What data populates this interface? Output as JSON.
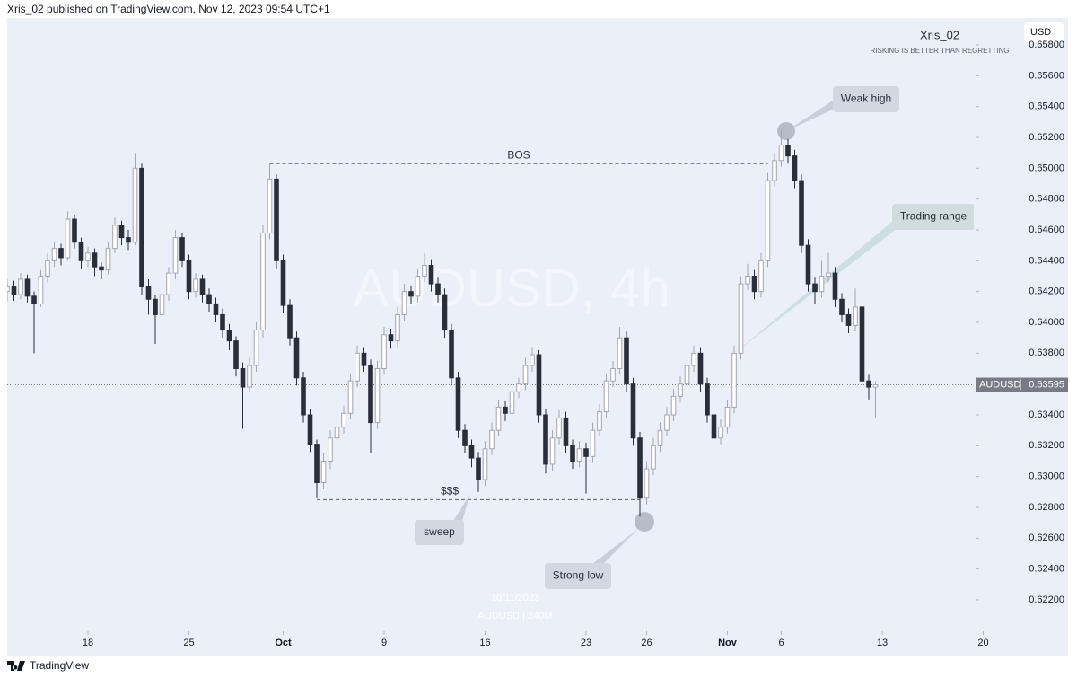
{
  "chart_data": {
    "type": "candlestick",
    "header": "Xris_02 published on TradingView.com, Nov 12, 2023 09:54 UTC+1",
    "currency": "USD",
    "author": "Xris_02",
    "tagline": "RISKING IS BETTER THAN REGRETTING",
    "watermark": "AUDUSD, 4h",
    "footer_date": "10/11/2023",
    "footer_symbol": "AUDUSD | 240M",
    "brand": "TradingView",
    "up_color": "#a3a6ae",
    "down_color": "#2a2e39",
    "ylim": [
      0.61996,
      0.65975
    ],
    "yticks": [
      {
        "value": 0.658,
        "label": "0.65800"
      },
      {
        "value": 0.656,
        "label": "0.65600"
      },
      {
        "value": 0.654,
        "label": "0.65400"
      },
      {
        "value": 0.652,
        "label": "0.65200"
      },
      {
        "value": 0.65,
        "label": "0.65000"
      },
      {
        "value": 0.648,
        "label": "0.64800"
      },
      {
        "value": 0.646,
        "label": "0.64600"
      },
      {
        "value": 0.644,
        "label": "0.64400"
      },
      {
        "value": 0.642,
        "label": "0.64200"
      },
      {
        "value": 0.64,
        "label": "0.64000"
      },
      {
        "value": 0.638,
        "label": "0.63800"
      },
      {
        "value": 0.636,
        "label": "0.63600"
      },
      {
        "value": 0.634,
        "label": "0.63400"
      },
      {
        "value": 0.632,
        "label": "0.63200"
      },
      {
        "value": 0.63,
        "label": "0.63000"
      },
      {
        "value": 0.628,
        "label": "0.62800"
      },
      {
        "value": 0.626,
        "label": "0.62600"
      },
      {
        "value": 0.624,
        "label": "0.62400"
      },
      {
        "value": 0.622,
        "label": "0.62200"
      }
    ],
    "xlim": [
      0,
      148
    ],
    "xticks": [
      {
        "value": 12,
        "label": "18"
      },
      {
        "value": 27,
        "label": "25"
      },
      {
        "value": 41,
        "label": "Oct"
      },
      {
        "value": 56,
        "label": "9"
      },
      {
        "value": 71,
        "label": "16"
      },
      {
        "value": 86,
        "label": "23"
      },
      {
        "value": 95,
        "label": "26"
      },
      {
        "value": 107,
        "label": "Nov"
      },
      {
        "value": 115,
        "label": "6"
      },
      {
        "value": 130,
        "label": "13"
      },
      {
        "value": 145,
        "label": "20"
      }
    ],
    "candles": [
      [
        0.642,
        0.6428,
        0.6414,
        0.6423
      ],
      [
        0.6423,
        0.6427,
        0.6414,
        0.6418
      ],
      [
        0.6418,
        0.6432,
        0.6415,
        0.6428
      ],
      [
        0.6428,
        0.6431,
        0.6413,
        0.6417
      ],
      [
        0.6417,
        0.642,
        0.638,
        0.6412
      ],
      [
        0.6412,
        0.6434,
        0.641,
        0.643
      ],
      [
        0.643,
        0.6445,
        0.6426,
        0.644
      ],
      [
        0.644,
        0.6452,
        0.6436,
        0.6448
      ],
      [
        0.6448,
        0.6451,
        0.6437,
        0.6442
      ],
      [
        0.6442,
        0.6472,
        0.644,
        0.6467
      ],
      [
        0.6467,
        0.647,
        0.6448,
        0.6452
      ],
      [
        0.6452,
        0.6455,
        0.6435,
        0.644
      ],
      [
        0.644,
        0.6449,
        0.6436,
        0.6445
      ],
      [
        0.6445,
        0.6448,
        0.643,
        0.6436
      ],
      [
        0.6436,
        0.6439,
        0.6428,
        0.6434
      ],
      [
        0.6434,
        0.6452,
        0.6431,
        0.6448
      ],
      [
        0.6448,
        0.6468,
        0.6445,
        0.6463
      ],
      [
        0.6463,
        0.6466,
        0.645,
        0.6455
      ],
      [
        0.6455,
        0.646,
        0.6447,
        0.6452
      ],
      [
        0.6452,
        0.651,
        0.645,
        0.65
      ],
      [
        0.65,
        0.6503,
        0.6418,
        0.6423
      ],
      [
        0.6423,
        0.6428,
        0.6405,
        0.6415
      ],
      [
        0.6415,
        0.6418,
        0.6386,
        0.6405
      ],
      [
        0.6405,
        0.6422,
        0.64,
        0.6418
      ],
      [
        0.6418,
        0.6436,
        0.6414,
        0.6432
      ],
      [
        0.6432,
        0.646,
        0.6428,
        0.6455
      ],
      [
        0.6455,
        0.6458,
        0.6436,
        0.644
      ],
      [
        0.644,
        0.6444,
        0.6415,
        0.642
      ],
      [
        0.642,
        0.6432,
        0.6416,
        0.6428
      ],
      [
        0.6428,
        0.6431,
        0.6413,
        0.6418
      ],
      [
        0.6418,
        0.6422,
        0.6407,
        0.6412
      ],
      [
        0.6412,
        0.6416,
        0.64,
        0.6405
      ],
      [
        0.6405,
        0.6409,
        0.639,
        0.6395
      ],
      [
        0.6395,
        0.6399,
        0.6382,
        0.6388
      ],
      [
        0.6388,
        0.6391,
        0.6365,
        0.637
      ],
      [
        0.637,
        0.6374,
        0.6331,
        0.6358
      ],
      [
        0.6358,
        0.6378,
        0.6355,
        0.6372
      ],
      [
        0.6372,
        0.64,
        0.6368,
        0.6395
      ],
      [
        0.6395,
        0.6463,
        0.639,
        0.6458
      ],
      [
        0.6458,
        0.6503,
        0.6454,
        0.6493
      ],
      [
        0.6493,
        0.6496,
        0.6435,
        0.644
      ],
      [
        0.644,
        0.6444,
        0.6406,
        0.6411
      ],
      [
        0.6411,
        0.6415,
        0.6385,
        0.639
      ],
      [
        0.639,
        0.6394,
        0.6359,
        0.6364
      ],
      [
        0.6364,
        0.6368,
        0.6335,
        0.634
      ],
      [
        0.634,
        0.6344,
        0.6316,
        0.6321
      ],
      [
        0.6321,
        0.6324,
        0.6286,
        0.6296
      ],
      [
        0.6296,
        0.6315,
        0.6292,
        0.631
      ],
      [
        0.631,
        0.633,
        0.6305,
        0.6325
      ],
      [
        0.6325,
        0.6337,
        0.632,
        0.6332
      ],
      [
        0.6332,
        0.6346,
        0.6328,
        0.6341
      ],
      [
        0.6341,
        0.6367,
        0.6337,
        0.6362
      ],
      [
        0.6362,
        0.6385,
        0.6358,
        0.638
      ],
      [
        0.638,
        0.6384,
        0.6368,
        0.6372
      ],
      [
        0.6372,
        0.6376,
        0.6315,
        0.6335
      ],
      [
        0.6335,
        0.6375,
        0.6331,
        0.637
      ],
      [
        0.637,
        0.6397,
        0.6366,
        0.6392
      ],
      [
        0.6392,
        0.6396,
        0.6383,
        0.6388
      ],
      [
        0.6388,
        0.641,
        0.6384,
        0.6405
      ],
      [
        0.6405,
        0.6425,
        0.6401,
        0.642
      ],
      [
        0.642,
        0.6424,
        0.6412,
        0.6417
      ],
      [
        0.6417,
        0.6435,
        0.6413,
        0.643
      ],
      [
        0.643,
        0.6445,
        0.6426,
        0.6437
      ],
      [
        0.6437,
        0.6441,
        0.642,
        0.6425
      ],
      [
        0.6425,
        0.6429,
        0.6413,
        0.6418
      ],
      [
        0.6418,
        0.6422,
        0.639,
        0.6395
      ],
      [
        0.6395,
        0.6399,
        0.6359,
        0.6364
      ],
      [
        0.6364,
        0.6368,
        0.6325,
        0.633
      ],
      [
        0.633,
        0.6334,
        0.6315,
        0.632
      ],
      [
        0.632,
        0.6324,
        0.6306,
        0.6312
      ],
      [
        0.6312,
        0.6316,
        0.629,
        0.6298
      ],
      [
        0.6298,
        0.6323,
        0.6294,
        0.6318
      ],
      [
        0.6318,
        0.6335,
        0.6314,
        0.633
      ],
      [
        0.633,
        0.635,
        0.6326,
        0.6345
      ],
      [
        0.6345,
        0.6349,
        0.6336,
        0.6341
      ],
      [
        0.6341,
        0.636,
        0.6337,
        0.6355
      ],
      [
        0.6355,
        0.6364,
        0.6351,
        0.636
      ],
      [
        0.636,
        0.6377,
        0.6356,
        0.6372
      ],
      [
        0.6372,
        0.6384,
        0.6368,
        0.6379
      ],
      [
        0.6379,
        0.6382,
        0.6335,
        0.634
      ],
      [
        0.634,
        0.6344,
        0.6302,
        0.6308
      ],
      [
        0.6308,
        0.633,
        0.6304,
        0.6325
      ],
      [
        0.6325,
        0.6343,
        0.6321,
        0.6338
      ],
      [
        0.6338,
        0.6342,
        0.6315,
        0.632
      ],
      [
        0.632,
        0.6324,
        0.6305,
        0.631
      ],
      [
        0.631,
        0.6323,
        0.6306,
        0.6318
      ],
      [
        0.6318,
        0.6322,
        0.6289,
        0.6313
      ],
      [
        0.6313,
        0.6335,
        0.6309,
        0.633
      ],
      [
        0.633,
        0.6347,
        0.6326,
        0.6342
      ],
      [
        0.6342,
        0.6367,
        0.6338,
        0.6362
      ],
      [
        0.6362,
        0.6375,
        0.6358,
        0.637
      ],
      [
        0.637,
        0.6397,
        0.6366,
        0.639
      ],
      [
        0.639,
        0.6394,
        0.6355,
        0.636
      ],
      [
        0.636,
        0.6364,
        0.632,
        0.6325
      ],
      [
        0.6325,
        0.6329,
        0.6274,
        0.6286
      ],
      [
        0.6286,
        0.631,
        0.6282,
        0.6305
      ],
      [
        0.6305,
        0.6325,
        0.6301,
        0.632
      ],
      [
        0.632,
        0.6335,
        0.6316,
        0.633
      ],
      [
        0.633,
        0.6345,
        0.6326,
        0.634
      ],
      [
        0.634,
        0.6357,
        0.6336,
        0.6352
      ],
      [
        0.6352,
        0.6365,
        0.6348,
        0.636
      ],
      [
        0.636,
        0.6377,
        0.6356,
        0.6372
      ],
      [
        0.6372,
        0.6385,
        0.6368,
        0.638
      ],
      [
        0.638,
        0.6384,
        0.6355,
        0.636
      ],
      [
        0.636,
        0.6364,
        0.6335,
        0.634
      ],
      [
        0.634,
        0.6344,
        0.6318,
        0.6325
      ],
      [
        0.6325,
        0.6337,
        0.6321,
        0.6332
      ],
      [
        0.6332,
        0.635,
        0.6328,
        0.6345
      ],
      [
        0.6345,
        0.6385,
        0.6341,
        0.638
      ],
      [
        0.638,
        0.643,
        0.6376,
        0.6425
      ],
      [
        0.6425,
        0.6438,
        0.6421,
        0.643
      ],
      [
        0.643,
        0.6434,
        0.6415,
        0.642
      ],
      [
        0.642,
        0.6445,
        0.6416,
        0.644
      ],
      [
        0.644,
        0.6497,
        0.6436,
        0.6492
      ],
      [
        0.6492,
        0.651,
        0.6488,
        0.6505
      ],
      [
        0.6505,
        0.6525,
        0.6501,
        0.6515
      ],
      [
        0.6515,
        0.6519,
        0.6503,
        0.6508
      ],
      [
        0.6508,
        0.6512,
        0.6487,
        0.6492
      ],
      [
        0.6492,
        0.6496,
        0.6445,
        0.645
      ],
      [
        0.645,
        0.6454,
        0.642,
        0.6425
      ],
      [
        0.6425,
        0.6429,
        0.6412,
        0.642
      ],
      [
        0.642,
        0.644,
        0.6416,
        0.643
      ],
      [
        0.643,
        0.6445,
        0.6426,
        0.6432
      ],
      [
        0.6432,
        0.6436,
        0.641,
        0.6415
      ],
      [
        0.6415,
        0.6419,
        0.64,
        0.6405
      ],
      [
        0.6405,
        0.6409,
        0.6393,
        0.6398
      ],
      [
        0.6398,
        0.6422,
        0.6394,
        0.641
      ],
      [
        0.641,
        0.6414,
        0.6357,
        0.6362
      ],
      [
        0.6362,
        0.6366,
        0.635,
        0.6358
      ],
      [
        0.6358,
        0.6362,
        0.6338,
        0.63595
      ]
    ],
    "levels": [
      {
        "label": "BOS",
        "value": 0.6503,
        "from": 39,
        "to": 113
      },
      {
        "label": "$$$",
        "value": 0.6285,
        "from": 46,
        "to": 94
      }
    ],
    "last_price": {
      "symbol": "AUDUSD",
      "value": 0.63595
    },
    "callouts": [
      "Weak high",
      "Trading range",
      "sweep",
      "Strong low"
    ]
  }
}
